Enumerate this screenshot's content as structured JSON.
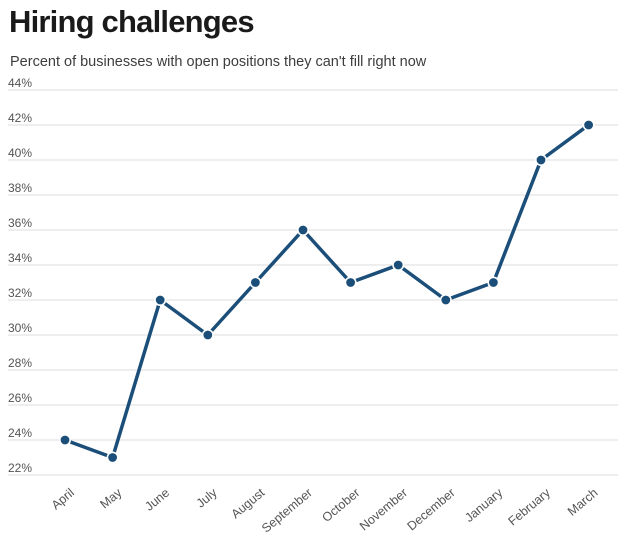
{
  "header": {
    "title": "Hiring challenges",
    "subtitle": "Percent of businesses with open positions they can't fill right now"
  },
  "chart_data": {
    "type": "line",
    "title": "Hiring challenges",
    "subtitle": "Percent of businesses with open positions they can't fill right now",
    "categories": [
      "April",
      "May",
      "June",
      "July",
      "August",
      "September",
      "October",
      "November",
      "December",
      "January",
      "February",
      "March"
    ],
    "values": [
      24,
      23,
      32,
      30,
      33,
      36,
      33,
      34,
      32,
      33,
      40,
      42
    ],
    "xlabel": "",
    "ylabel": "",
    "ylim": [
      22,
      44
    ],
    "ytick_step": 2,
    "ytick_suffix": "%",
    "grid": "horizontal",
    "legend": "none",
    "marker": "circle",
    "colors": {
      "line": "#1b4e79",
      "marker": "#1b4e79",
      "marker_ring": "#ffffff",
      "grid": "#dcdcdc",
      "title": "#1a1a1a",
      "subtitle": "#3d3d3d",
      "tick_labels": "#545454"
    }
  }
}
